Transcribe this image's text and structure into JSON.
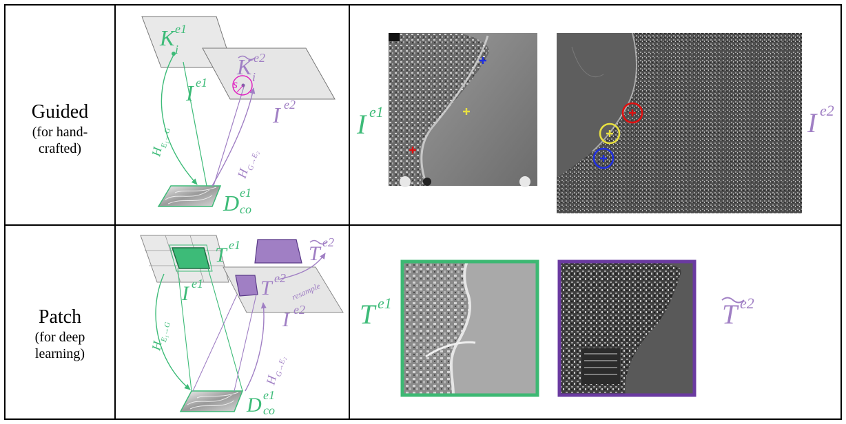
{
  "rows": [
    {
      "title": "Guided",
      "subtitle": "(for hand-crafted)",
      "subtitle_lines": [
        "(for hand-",
        "crafted)"
      ]
    },
    {
      "title": "Patch",
      "subtitle": "(for deep learning)",
      "subtitle_lines": [
        "(for deep",
        "learning)"
      ]
    }
  ],
  "symbols": {
    "K": "K",
    "i": "i",
    "e1": "e1",
    "e2": "e2",
    "I": "I",
    "D": "D",
    "co": "co",
    "T": "T",
    "s": "s",
    "H": "H",
    "h_e1_g": "E₁→G",
    "h_g_e2": "G→E₂",
    "resample": "resample"
  },
  "colors": {
    "green": "#3dbb78",
    "purple": "#a07fc4",
    "magenta": "#e020c0",
    "green_frame": "#3db873",
    "purple_frame": "#6a3aa0",
    "marker_red": "#e01010",
    "marker_yellow": "#e8e040",
    "marker_blue": "#2030e0"
  }
}
